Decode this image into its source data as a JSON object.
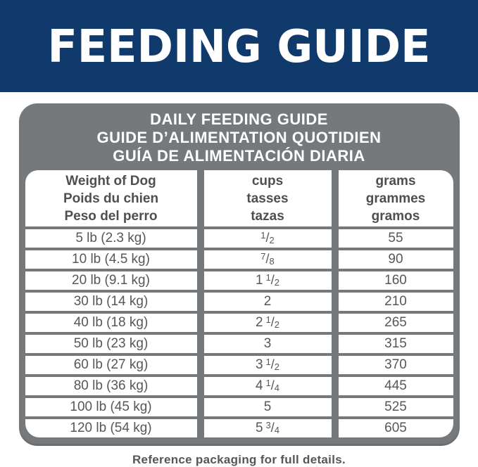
{
  "colors": {
    "navy": "#103a6b",
    "panel-gray": "#76797c",
    "border-dark": "#6a6d70",
    "cell-text": "#55575b",
    "head-cell-text": "#4d4f53",
    "footnote-text": "#54565b"
  },
  "banner": {
    "title": "FEEDING GUIDE"
  },
  "guide": {
    "header_lines": [
      "DAILY FEEDING GUIDE",
      "GUIDE D’ALIMENTATION QUOTIDIEN",
      "GUÍA DE ALIMENTACIÓN DIARIA"
    ],
    "columns": [
      {
        "id": "weight",
        "lines": [
          "Weight of Dog",
          "Poids du chien",
          "Peso del perro"
        ]
      },
      {
        "id": "cups",
        "lines": [
          "cups",
          "tasses",
          "tazas"
        ]
      },
      {
        "id": "grams",
        "lines": [
          "grams",
          "grammes",
          "gramos"
        ]
      }
    ],
    "rows": [
      {
        "weight": "5 lb (2.3 kg)",
        "cups_int": "",
        "cups_num": "1",
        "cups_den": "2",
        "grams": "55"
      },
      {
        "weight": "10 lb (4.5 kg)",
        "cups_int": "",
        "cups_num": "7",
        "cups_den": "8",
        "grams": "90"
      },
      {
        "weight": "20 lb (9.1 kg)",
        "cups_int": "1",
        "cups_num": "1",
        "cups_den": "2",
        "grams": "160"
      },
      {
        "weight": "30 lb (14 kg)",
        "cups_int": "2",
        "cups_num": "",
        "cups_den": "",
        "grams": "210"
      },
      {
        "weight": "40 lb (18 kg)",
        "cups_int": "2",
        "cups_num": "1",
        "cups_den": "2",
        "grams": "265"
      },
      {
        "weight": "50 lb (23 kg)",
        "cups_int": "3",
        "cups_num": "",
        "cups_den": "",
        "grams": "315"
      },
      {
        "weight": "60 lb (27 kg)",
        "cups_int": "3",
        "cups_num": "1",
        "cups_den": "2",
        "grams": "370"
      },
      {
        "weight": "80 lb (36 kg)",
        "cups_int": "4",
        "cups_num": "1",
        "cups_den": "4",
        "grams": "445"
      },
      {
        "weight": "100 lb (45 kg)",
        "cups_int": "5",
        "cups_num": "",
        "cups_den": "",
        "grams": "525"
      },
      {
        "weight": "120 lb (54 kg)",
        "cups_int": "5",
        "cups_num": "3",
        "cups_den": "4",
        "grams": "605"
      }
    ]
  },
  "footer": {
    "note": "Reference packaging for full details."
  }
}
